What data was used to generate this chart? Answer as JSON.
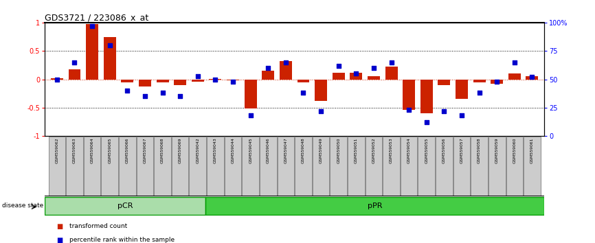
{
  "title": "GDS3721 / 223086_x_at",
  "samples": [
    "GSM559062",
    "GSM559063",
    "GSM559064",
    "GSM559065",
    "GSM559066",
    "GSM559067",
    "GSM559068",
    "GSM559069",
    "GSM559042",
    "GSM559043",
    "GSM559044",
    "GSM559045",
    "GSM559046",
    "GSM559047",
    "GSM559048",
    "GSM559049",
    "GSM559050",
    "GSM559051",
    "GSM559052",
    "GSM559053",
    "GSM559054",
    "GSM559055",
    "GSM559056",
    "GSM559057",
    "GSM559058",
    "GSM559059",
    "GSM559060",
    "GSM559061"
  ],
  "bar_values": [
    0.02,
    0.18,
    0.97,
    0.75,
    -0.05,
    -0.13,
    -0.06,
    -0.1,
    -0.04,
    0.01,
    -0.02,
    -0.52,
    0.15,
    0.32,
    -0.05,
    -0.38,
    0.12,
    0.12,
    0.05,
    0.22,
    -0.54,
    -0.6,
    -0.1,
    -0.35,
    -0.05,
    -0.08,
    0.1,
    0.05
  ],
  "dot_pct": [
    50,
    65,
    97,
    80,
    40,
    35,
    38,
    35,
    53,
    50,
    48,
    18,
    60,
    65,
    38,
    22,
    62,
    55,
    60,
    65,
    23,
    12,
    22,
    18,
    38,
    48,
    65,
    52
  ],
  "pCR_count": 9,
  "pPR_count": 19,
  "bar_color": "#cc2200",
  "dot_color": "#0000cc",
  "pCR_color": "#aaddaa",
  "pPR_color": "#44cc44",
  "ylim": [
    -1.0,
    1.0
  ]
}
